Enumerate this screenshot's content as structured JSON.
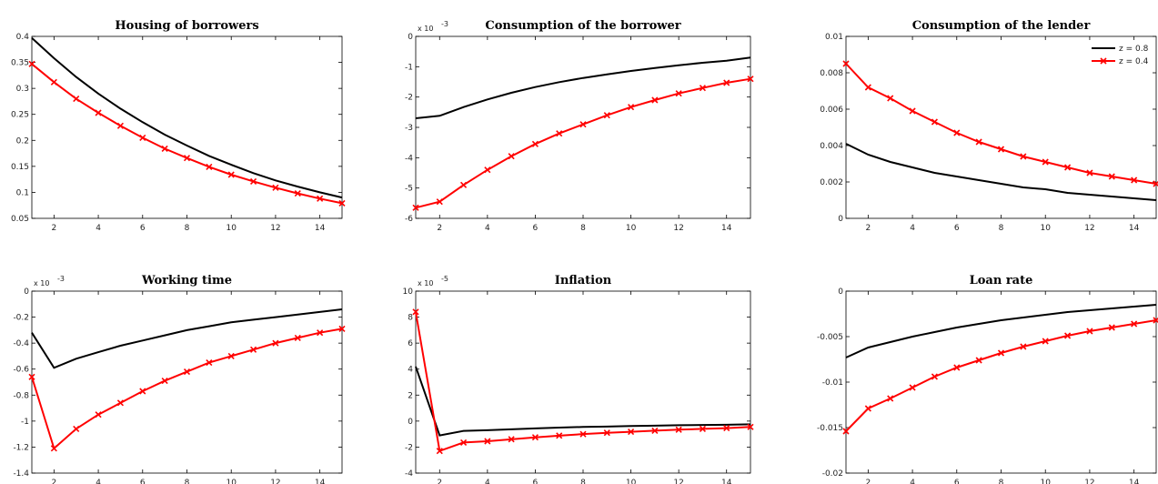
{
  "chart_data": [
    {
      "type": "line",
      "title": "Housing of borrowers",
      "xlim": [
        1,
        15
      ],
      "ylim": [
        0.05,
        0.4
      ],
      "xticks": [
        2,
        4,
        6,
        8,
        10,
        12,
        14
      ],
      "yticks": [
        "0.05",
        "0.1",
        "0.15",
        "0.2",
        "0.25",
        "0.3",
        "0.35",
        "0.4"
      ],
      "ytick_values": [
        0.05,
        0.1,
        0.15,
        0.2,
        0.25,
        0.3,
        0.35,
        0.4
      ],
      "multiplier": "",
      "x": [
        1,
        2,
        3,
        4,
        5,
        6,
        7,
        8,
        9,
        10,
        11,
        12,
        13,
        14,
        15
      ],
      "series": [
        {
          "name": "z = 0.8",
          "color": "#000000",
          "marker": "none",
          "values": [
            0.397,
            0.358,
            0.322,
            0.29,
            0.261,
            0.235,
            0.211,
            0.19,
            0.17,
            0.153,
            0.137,
            0.123,
            0.111,
            0.1,
            0.09
          ]
        },
        {
          "name": "z = 0.4",
          "color": "#ff0000",
          "marker": "x",
          "values": [
            0.347,
            0.312,
            0.28,
            0.253,
            0.228,
            0.205,
            0.184,
            0.166,
            0.149,
            0.134,
            0.121,
            0.109,
            0.098,
            0.088,
            0.079
          ]
        }
      ]
    },
    {
      "type": "line",
      "title": "Consumption of the borrower",
      "xlim": [
        1,
        15
      ],
      "ylim": [
        -6,
        0
      ],
      "xticks": [
        2,
        4,
        6,
        8,
        10,
        12,
        14
      ],
      "yticks": [
        "-6",
        "-5",
        "-4",
        "-3",
        "-2",
        "-1",
        "0"
      ],
      "ytick_values": [
        -6,
        -5,
        -4,
        -3,
        -2,
        -1,
        0
      ],
      "multiplier": "x 10",
      "multiplier_exp": "-3",
      "x": [
        1,
        2,
        3,
        4,
        5,
        6,
        7,
        8,
        9,
        10,
        11,
        12,
        13,
        14,
        15
      ],
      "series": [
        {
          "name": "z = 0.8",
          "color": "#000000",
          "marker": "none",
          "values": [
            -2.7,
            -2.62,
            -2.33,
            -2.08,
            -1.86,
            -1.67,
            -1.51,
            -1.37,
            -1.25,
            -1.14,
            -1.04,
            -0.95,
            -0.87,
            -0.8,
            -0.7
          ]
        },
        {
          "name": "z = 0.4",
          "color": "#ff0000",
          "marker": "x",
          "values": [
            -5.65,
            -5.45,
            -4.9,
            -4.4,
            -3.95,
            -3.55,
            -3.2,
            -2.9,
            -2.6,
            -2.33,
            -2.1,
            -1.88,
            -1.7,
            -1.53,
            -1.4
          ]
        }
      ]
    },
    {
      "type": "line",
      "title": "Consumption of the lender",
      "xlim": [
        1,
        15
      ],
      "ylim": [
        0,
        0.01
      ],
      "xticks": [
        2,
        4,
        6,
        8,
        10,
        12,
        14
      ],
      "yticks": [
        "0",
        "0.002",
        "0.004",
        "0.006",
        "0.008",
        "0.01"
      ],
      "ytick_values": [
        0,
        0.002,
        0.004,
        0.006,
        0.008,
        0.01
      ],
      "multiplier": "",
      "legend": {
        "position": "top-right",
        "labels": [
          "z = 0.8",
          "z = 0.4"
        ]
      },
      "x": [
        1,
        2,
        3,
        4,
        5,
        6,
        7,
        8,
        9,
        10,
        11,
        12,
        13,
        14,
        15
      ],
      "series": [
        {
          "name": "z = 0.8",
          "color": "#000000",
          "marker": "none",
          "values": [
            0.0041,
            0.0035,
            0.0031,
            0.0028,
            0.0025,
            0.0023,
            0.0021,
            0.0019,
            0.0017,
            0.0016,
            0.0014,
            0.0013,
            0.0012,
            0.0011,
            0.001
          ]
        },
        {
          "name": "z = 0.4",
          "color": "#ff0000",
          "marker": "x",
          "values": [
            0.0085,
            0.0072,
            0.0066,
            0.0059,
            0.0053,
            0.0047,
            0.0042,
            0.0038,
            0.0034,
            0.0031,
            0.0028,
            0.0025,
            0.0023,
            0.0021,
            0.0019
          ]
        }
      ]
    },
    {
      "type": "line",
      "title": "Working time",
      "xlim": [
        1,
        15
      ],
      "ylim": [
        -1.4,
        0
      ],
      "xticks": [
        2,
        4,
        6,
        8,
        10,
        12,
        14
      ],
      "yticks": [
        "-1.4",
        "-1.2",
        "-1",
        "-0.8",
        "-0.6",
        "-0.4",
        "-0.2",
        "0"
      ],
      "ytick_values": [
        -1.4,
        -1.2,
        -1,
        -0.8,
        -0.6,
        -0.4,
        -0.2,
        0
      ],
      "multiplier": "x 10",
      "multiplier_exp": "-3",
      "x": [
        1,
        2,
        3,
        4,
        5,
        6,
        7,
        8,
        9,
        10,
        11,
        12,
        13,
        14,
        15
      ],
      "series": [
        {
          "name": "z = 0.8",
          "color": "#000000",
          "marker": "none",
          "values": [
            -0.32,
            -0.59,
            -0.52,
            -0.47,
            -0.42,
            -0.38,
            -0.34,
            -0.3,
            -0.27,
            -0.24,
            -0.22,
            -0.2,
            -0.18,
            -0.16,
            -0.14
          ]
        },
        {
          "name": "z = 0.4",
          "color": "#ff0000",
          "marker": "x",
          "values": [
            -0.66,
            -1.21,
            -1.06,
            -0.95,
            -0.86,
            -0.77,
            -0.69,
            -0.62,
            -0.55,
            -0.5,
            -0.45,
            -0.4,
            -0.36,
            -0.32,
            -0.29
          ]
        }
      ]
    },
    {
      "type": "line",
      "title": "Inflation",
      "xlim": [
        1,
        15
      ],
      "ylim": [
        -4,
        10
      ],
      "xticks": [
        2,
        4,
        6,
        8,
        10,
        12,
        14
      ],
      "yticks": [
        "-4",
        "-2",
        "0",
        "2",
        "4",
        "6",
        "8",
        "10"
      ],
      "ytick_values": [
        -4,
        -2,
        0,
        2,
        4,
        6,
        8,
        10
      ],
      "multiplier": "x 10",
      "multiplier_exp": "-5",
      "x": [
        1,
        2,
        3,
        4,
        5,
        6,
        7,
        8,
        9,
        10,
        11,
        12,
        13,
        14,
        15
      ],
      "series": [
        {
          "name": "z = 0.8",
          "color": "#000000",
          "marker": "none",
          "values": [
            4.2,
            -1.1,
            -0.75,
            -0.7,
            -0.63,
            -0.56,
            -0.5,
            -0.45,
            -0.42,
            -0.38,
            -0.35,
            -0.32,
            -0.3,
            -0.28,
            -0.25
          ]
        },
        {
          "name": "z = 0.4",
          "color": "#ff0000",
          "marker": "x",
          "values": [
            8.4,
            -2.3,
            -1.65,
            -1.55,
            -1.4,
            -1.25,
            -1.12,
            -1.0,
            -0.9,
            -0.82,
            -0.74,
            -0.66,
            -0.6,
            -0.54,
            -0.45
          ]
        }
      ]
    },
    {
      "type": "line",
      "title": "Loan rate",
      "xlim": [
        1,
        15
      ],
      "ylim": [
        -0.02,
        0
      ],
      "xticks": [
        2,
        4,
        6,
        8,
        10,
        12,
        14
      ],
      "yticks": [
        "-0.02",
        "-0.015",
        "-0.01",
        "-0.005",
        "0"
      ],
      "ytick_values": [
        -0.02,
        -0.015,
        -0.01,
        -0.005,
        0
      ],
      "multiplier": "",
      "x": [
        1,
        2,
        3,
        4,
        5,
        6,
        7,
        8,
        9,
        10,
        11,
        12,
        13,
        14,
        15
      ],
      "series": [
        {
          "name": "z = 0.8",
          "color": "#000000",
          "marker": "none",
          "values": [
            -0.0073,
            -0.0062,
            -0.0056,
            -0.005,
            -0.0045,
            -0.004,
            -0.0036,
            -0.0032,
            -0.0029,
            -0.0026,
            -0.0023,
            -0.0021,
            -0.0019,
            -0.0017,
            -0.0015
          ]
        },
        {
          "name": "z = 0.4",
          "color": "#ff0000",
          "marker": "x",
          "values": [
            -0.0154,
            -0.0129,
            -0.0118,
            -0.0106,
            -0.0094,
            -0.0084,
            -0.0076,
            -0.0068,
            -0.0061,
            -0.0055,
            -0.0049,
            -0.0044,
            -0.004,
            -0.0036,
            -0.0032
          ]
        }
      ]
    }
  ]
}
